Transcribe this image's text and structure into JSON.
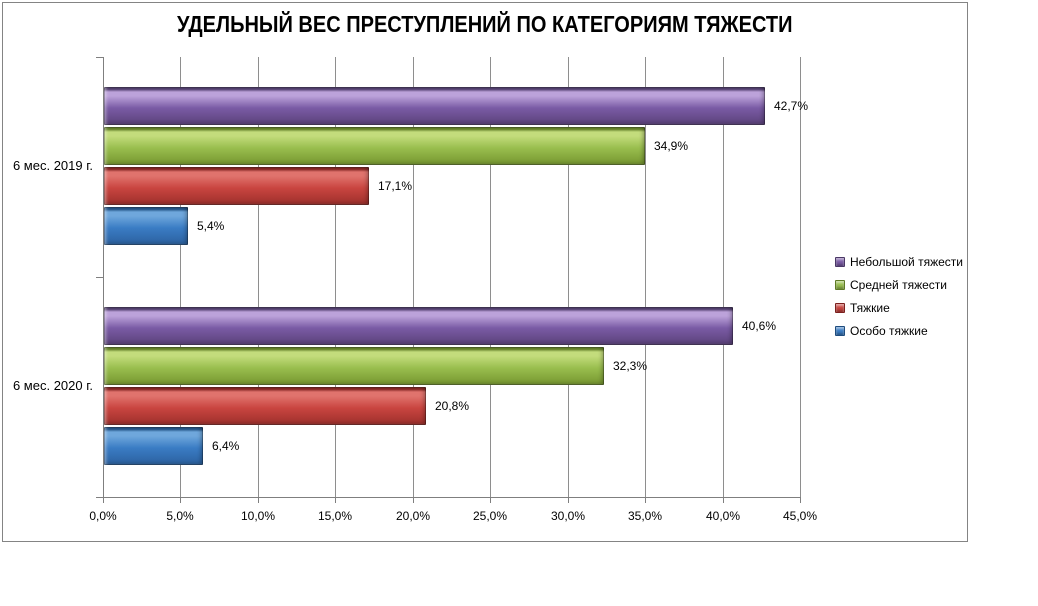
{
  "chart_data": {
    "type": "bar",
    "orientation": "horizontal",
    "title": "УДЕЛЬНЫЙ ВЕС ПРЕСТУПЛЕНИЙ ПО КАТЕГОРИЯМ ТЯЖЕСТИ",
    "categories": [
      "6 мес. 2019 г.",
      "6 мес. 2020 г."
    ],
    "series": [
      {
        "name": "Небольшой тяжести",
        "values": [
          42.7,
          40.6
        ],
        "labels": [
          "42,7%",
          "40,6%"
        ],
        "color": {
          "main": "#7a5ba5",
          "light": "#bca2da",
          "dark": "#5a4179",
          "edge": "#4a3766"
        }
      },
      {
        "name": "Средней тяжести",
        "values": [
          34.9,
          32.3
        ],
        "labels": [
          "34,9%",
          "32,3%"
        ],
        "color": {
          "main": "#99be4e",
          "light": "#c3dc7c",
          "dark": "#75952f",
          "edge": "#5e7a24"
        }
      },
      {
        "name": "Тяжкие",
        "values": [
          17.1,
          20.8
        ],
        "labels": [
          "17,1%",
          "20,8%"
        ],
        "color": {
          "main": "#c94540",
          "light": "#e0736d",
          "dark": "#9c2f2b",
          "edge": "#7c201e"
        }
      },
      {
        "name": "Особо тяжкие",
        "values": [
          5.4,
          6.4
        ],
        "labels": [
          "5,4%",
          "6,4%"
        ],
        "color": {
          "main": "#3a7cc4",
          "light": "#6fa7dc",
          "dark": "#2b609e",
          "edge": "#1e4c7e"
        }
      }
    ],
    "x_axis": {
      "min": 0,
      "max": 45,
      "step": 5,
      "tick_labels": [
        "0,0%",
        "5,0%",
        "10,0%",
        "15,0%",
        "20,0%",
        "25,0%",
        "30,0%",
        "35,0%",
        "40,0%",
        "45,0%"
      ]
    },
    "legend_position": "right",
    "grid": true,
    "axis_color": "#7f7f7f",
    "gridline_color": "#8e8e8e"
  }
}
